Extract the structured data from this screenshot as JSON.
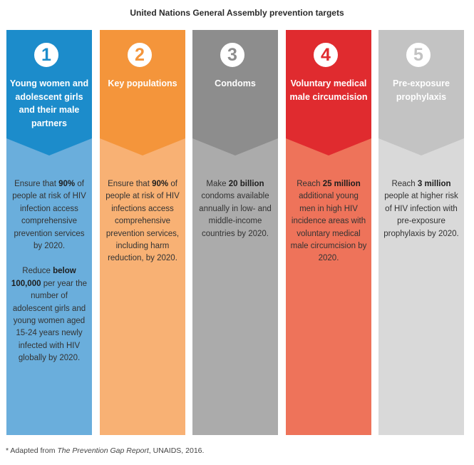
{
  "title": "United Nations General Assembly prevention targets",
  "columns": [
    {
      "number": "1",
      "heading": "Young women and adolescent girls and their male partners",
      "top_color": "#1c8ccb",
      "body_color": "#6aaedc",
      "paragraphs": [
        [
          {
            "t": "Ensure that ",
            "b": false
          },
          {
            "t": "90%",
            "b": true
          },
          {
            "t": " of people at risk of HIV infection access comprehensive prevention services by 2020.",
            "b": false
          }
        ],
        [
          {
            "t": "Reduce ",
            "b": false
          },
          {
            "t": "below 100,000",
            "b": true
          },
          {
            "t": " per year the number of adolescent girls and young women aged 15-24 years newly infected with HIV globally by 2020.",
            "b": false
          }
        ]
      ]
    },
    {
      "number": "2",
      "heading": "Key populations",
      "top_color": "#f4953b",
      "body_color": "#f8b174",
      "paragraphs": [
        [
          {
            "t": "Ensure that ",
            "b": false
          },
          {
            "t": "90%",
            "b": true
          },
          {
            "t": " of people at risk of HIV infections access comprehensive prevention services, including harm reduction, by 2020.",
            "b": false
          }
        ]
      ]
    },
    {
      "number": "3",
      "heading": "Condoms",
      "top_color": "#8d8d8d",
      "body_color": "#ababab",
      "paragraphs": [
        [
          {
            "t": "Make ",
            "b": false
          },
          {
            "t": "20 billion",
            "b": true
          },
          {
            "t": " condoms available annually in low- and middle-income countries by 2020.",
            "b": false
          }
        ]
      ]
    },
    {
      "number": "4",
      "heading": "Voluntary medical male circumcision",
      "top_color": "#e02b2f",
      "body_color": "#ee735a",
      "paragraphs": [
        [
          {
            "t": "Reach ",
            "b": false
          },
          {
            "t": "25 million",
            "b": true
          },
          {
            "t": " additional young men in high HIV incidence areas with voluntary medical male circumcision by 2020.",
            "b": false
          }
        ]
      ]
    },
    {
      "number": "5",
      "heading": "Pre-exposure prophylaxis",
      "top_color": "#c3c3c3",
      "body_color": "#d9d9d9",
      "paragraphs": [
        [
          {
            "t": "Reach ",
            "b": false
          },
          {
            "t": "3 million",
            "b": true
          },
          {
            "t": " people at higher risk of HIV infection with pre-exposure prophylaxis by 2020.",
            "b": false
          }
        ]
      ]
    }
  ],
  "footnote": {
    "prefix": "* Adapted from ",
    "italic": "The Prevention Gap Report",
    "suffix": ", UNAIDS, 2016."
  }
}
